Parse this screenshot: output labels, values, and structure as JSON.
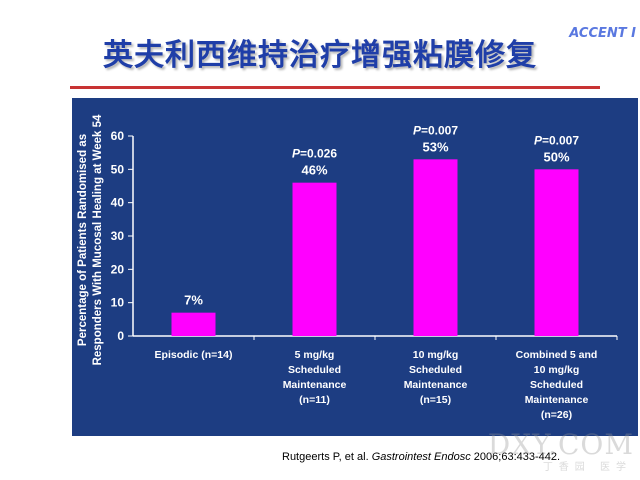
{
  "title": "英夫利西维持治疗增强粘膜修复",
  "brand": "ACCENT I",
  "citation": {
    "authors": "Rutgeerts P, et al. ",
    "journal": "Gastrointest Endosc",
    "details": " 2006;63:433-442."
  },
  "watermark": "DXY.COM",
  "watermark_sub": "丁香园 医学",
  "colors": {
    "bar": "#ff00ff",
    "panel": "#1d3d82",
    "text": "#ffffff",
    "title": "#1f3ea8",
    "rule": "#c83333"
  },
  "chart_data": {
    "type": "bar",
    "ylabel": "Percentage of Patients Randomised as Responders With Mucosal Healing at Week 54",
    "ylabel_lines": [
      "Percentage of Patients Randomised as",
      "Responders With Mucosal Healing at Week 54"
    ],
    "ylim": [
      0,
      60
    ],
    "yticks": [
      0,
      10,
      20,
      30,
      40,
      50,
      60
    ],
    "categories": [
      [
        "Episodic (n=14)"
      ],
      [
        "5 mg/kg",
        "Scheduled",
        "Maintenance",
        "(n=11)"
      ],
      [
        "10 mg/kg",
        "Scheduled",
        "Maintenance",
        "(n=15)"
      ],
      [
        "Combined 5 and",
        "10 mg/kg",
        "Scheduled",
        "Maintenance",
        "(n=26)"
      ]
    ],
    "values": [
      7,
      46,
      53,
      50
    ],
    "value_labels": [
      "7%",
      "46%",
      "53%",
      "50%"
    ],
    "pvalues": [
      "",
      "0.026",
      "0.007",
      "0.007"
    ],
    "p_prefix": "P",
    "grid": false,
    "legend": "none"
  }
}
